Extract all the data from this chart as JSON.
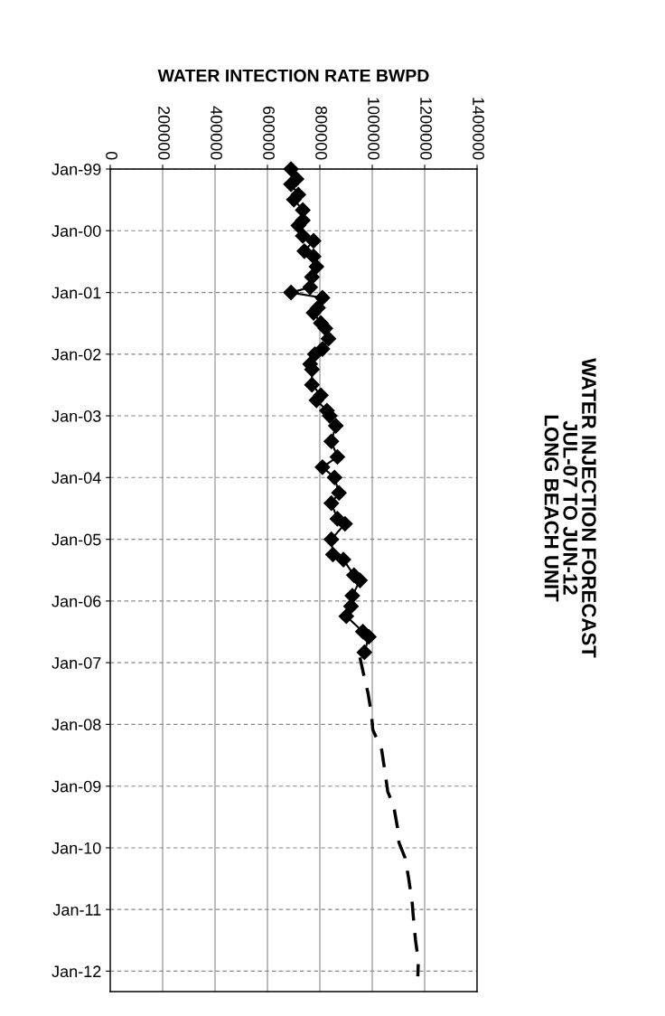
{
  "chart_data": {
    "type": "line",
    "orientation": "horizontal",
    "title": "WATER INJECTION FORECAST\nJUL-07 TO JUN-12\nLONG BEACH UNIT",
    "xlabel": "WATER INTECTION RATE BWPD",
    "xlim": [
      0,
      1400000
    ],
    "xticks": [
      0,
      200000,
      400000,
      600000,
      800000,
      1000000,
      1200000,
      1400000
    ],
    "ylim": [
      "2012-05",
      "1999-01"
    ],
    "yticks": [
      {
        "value": "1999-01",
        "label": "Jan-99"
      },
      {
        "value": "2000-01",
        "label": "Jan-00"
      },
      {
        "value": "2001-01",
        "label": "Jan-01"
      },
      {
        "value": "2002-01",
        "label": "Jan-02"
      },
      {
        "value": "2003-01",
        "label": "Jan-03"
      },
      {
        "value": "2004-01",
        "label": "Jan-04"
      },
      {
        "value": "2005-01",
        "label": "Jan-05"
      },
      {
        "value": "2006-01",
        "label": "Jan-06"
      },
      {
        "value": "2007-01",
        "label": "Jan-07"
      },
      {
        "value": "2008-01",
        "label": "Jan-08"
      },
      {
        "value": "2009-01",
        "label": "Jan-09"
      },
      {
        "value": "2010-01",
        "label": "Jan-10"
      },
      {
        "value": "2011-01",
        "label": "Jan-11"
      },
      {
        "value": "2012-01",
        "label": "Jan-12"
      }
    ],
    "grid": true,
    "series": [
      {
        "color": "#000000",
        "marker": "diamond",
        "line_style": "solid",
        "x": [
          "1999-01",
          "1999-03",
          "1999-04",
          "1999-06",
          "1999-07",
          "1999-09",
          "1999-11",
          "1999-12",
          "2000-02",
          "2000-03",
          "2000-05",
          "2000-06",
          "2000-08",
          "2000-10",
          "2000-12",
          "2001-01",
          "2001-02",
          "2001-04",
          "2001-05",
          "2001-07",
          "2001-08",
          "2001-10",
          "2001-12",
          "2002-01",
          "2002-03",
          "2002-04",
          "2002-07",
          "2002-09",
          "2002-10",
          "2002-12",
          "2003-01",
          "2003-03",
          "2003-06",
          "2003-09",
          "2003-11",
          "2004-01",
          "2004-04",
          "2004-06",
          "2004-09",
          "2004-10",
          "2005-01",
          "2005-04",
          "2005-05",
          "2005-08",
          "2005-09",
          "2005-12",
          "2006-02",
          "2006-04",
          "2006-07",
          "2006-08",
          "2006-11"
        ],
        "values": [
          690000,
          711000,
          690000,
          718000,
          701000,
          735000,
          735000,
          718000,
          735000,
          776000,
          741000,
          776000,
          787000,
          770000,
          763000,
          690000,
          810000,
          793000,
          776000,
          804000,
          821000,
          833000,
          810000,
          781000,
          763000,
          770000,
          770000,
          804000,
          787000,
          827000,
          838000,
          861000,
          844000,
          867000,
          810000,
          856000,
          873000,
          844000,
          867000,
          896000,
          844000,
          850000,
          890000,
          930000,
          953000,
          924000,
          919000,
          901000,
          964000,
          987000,
          970000
        ]
      },
      {
        "color": "#000000",
        "marker": "none",
        "line_style": "dashed",
        "x": [
          "2006-12",
          "2007-04",
          "2007-07",
          "2007-11",
          "2008-02",
          "2008-06",
          "2008-10",
          "2009-02",
          "2009-05",
          "2009-09",
          "2009-12",
          "2010-03",
          "2010-07",
          "2010-12",
          "2011-02",
          "2011-07",
          "2011-11",
          "2012-02"
        ],
        "values": [
          953000,
          970000,
          984000,
          997000,
          1002000,
          1036000,
          1048000,
          1059000,
          1082000,
          1096000,
          1102000,
          1125000,
          1139000,
          1153000,
          1156000,
          1165000,
          1176000,
          1174000
        ]
      }
    ]
  }
}
